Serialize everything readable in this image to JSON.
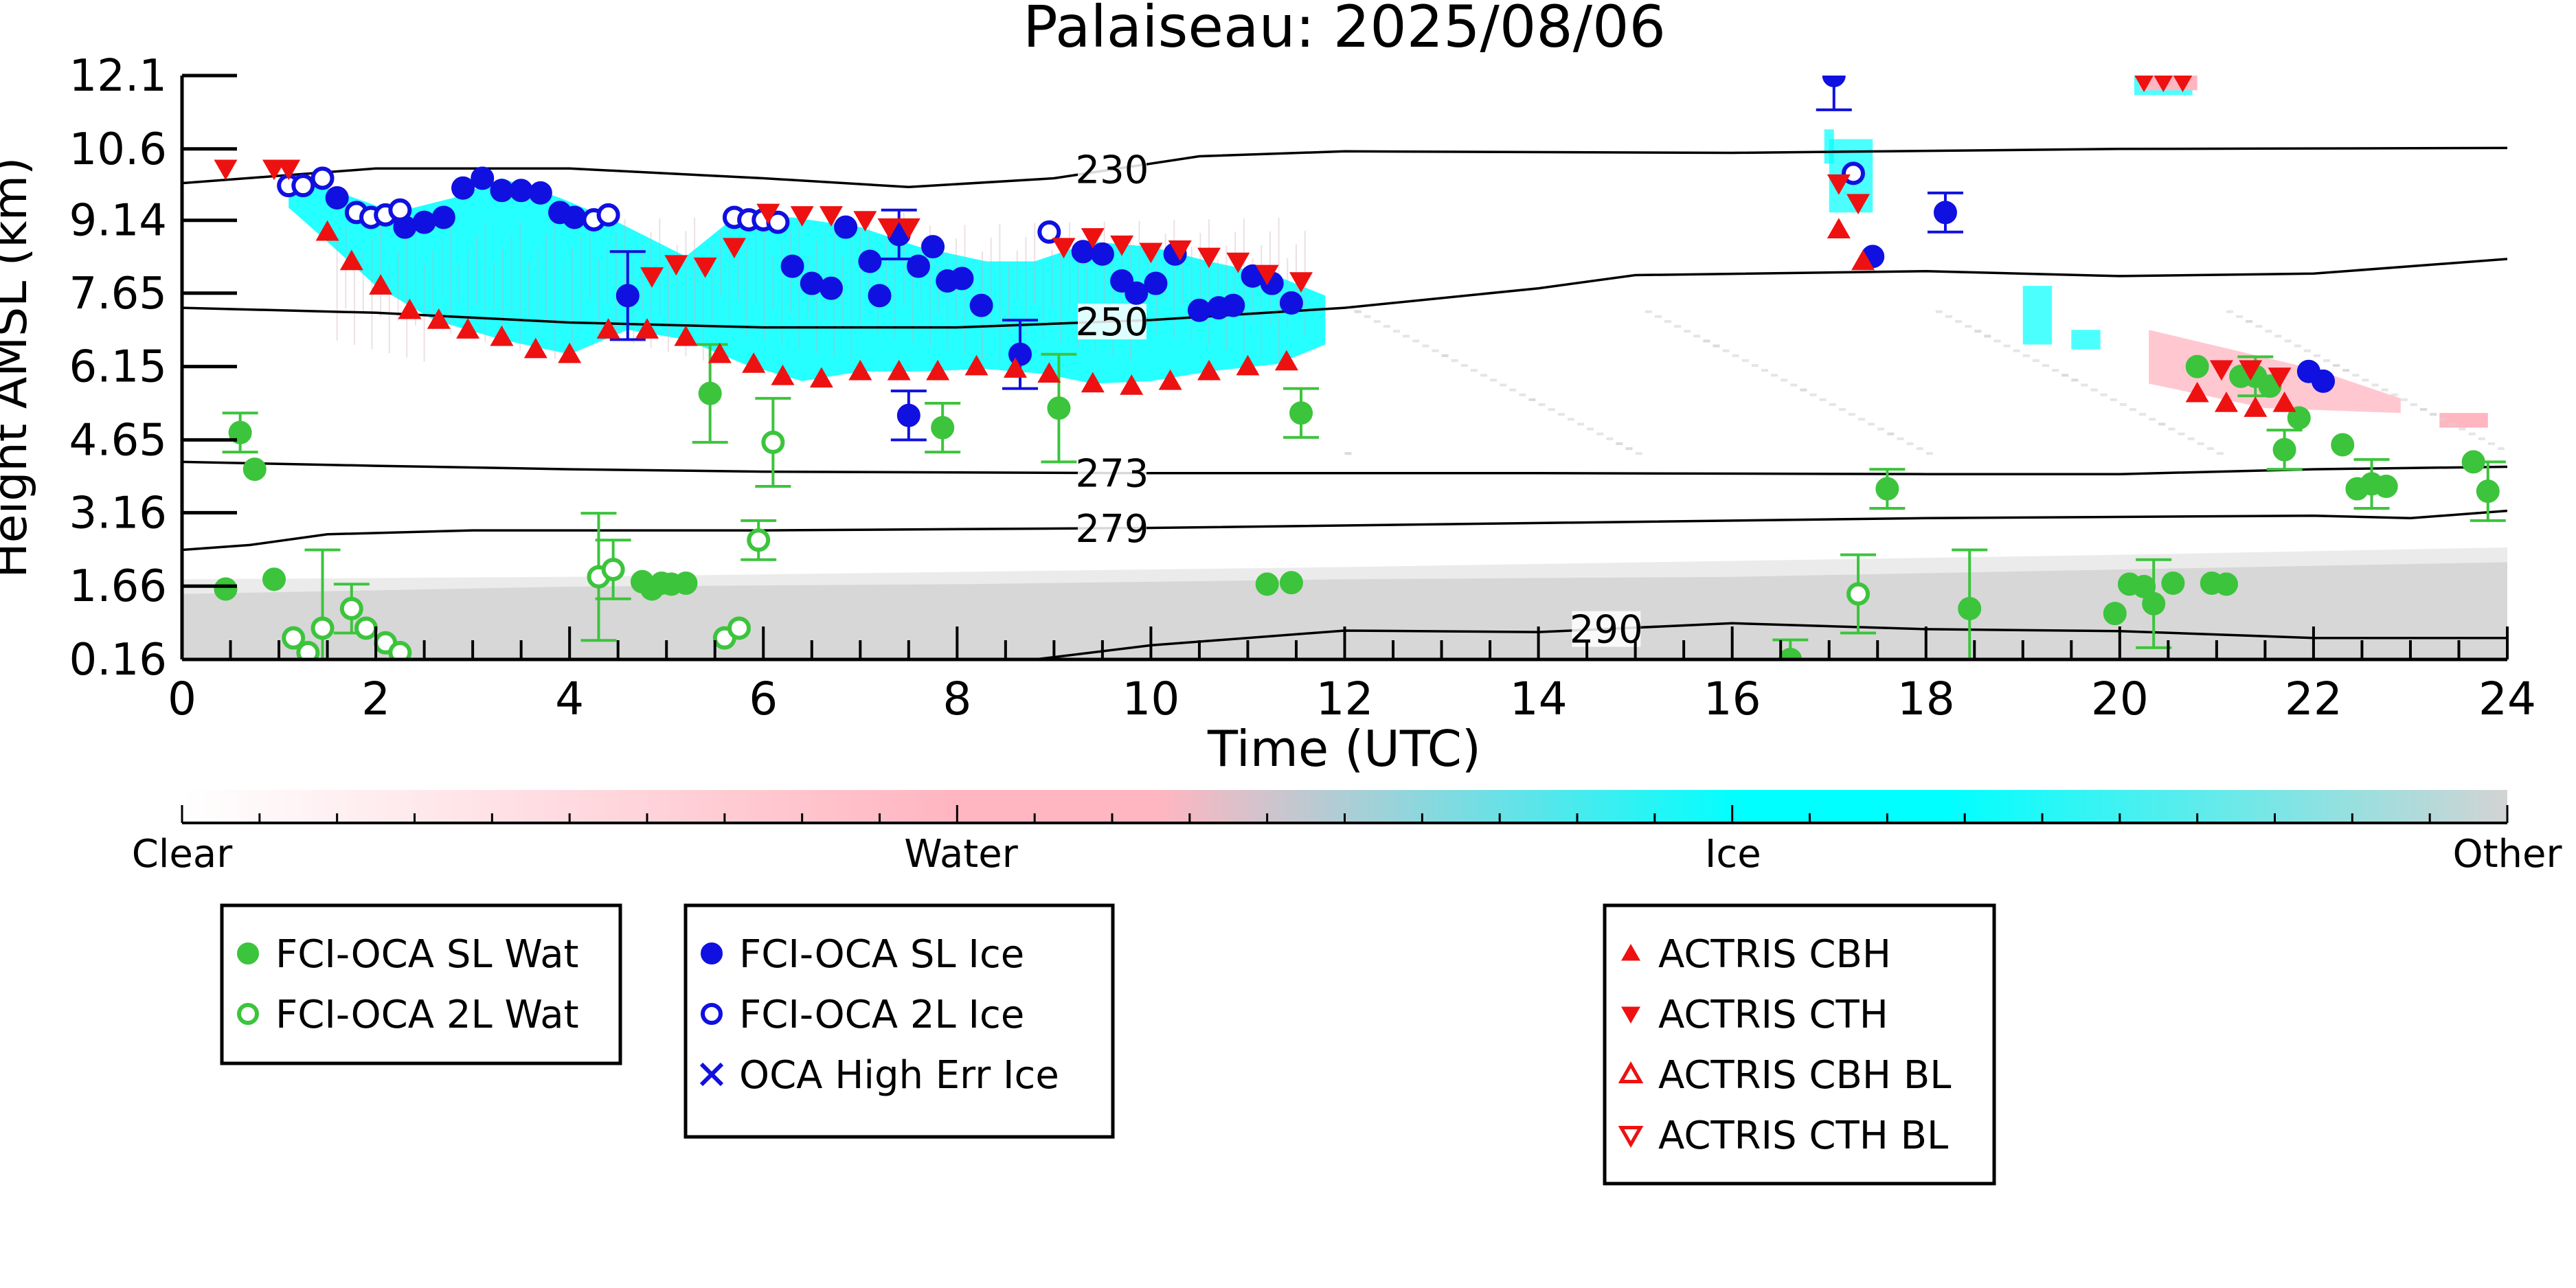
{
  "chart_data": {
    "type": "scatter",
    "title": "Palaiseau: 2025/08/06",
    "xlabel": "Time (UTC)",
    "ylabel": "Height AMSL (km)",
    "xlim": [
      0,
      24
    ],
    "ylim": [
      0.16,
      12.1
    ],
    "x_ticks": [
      0,
      2,
      4,
      6,
      8,
      10,
      12,
      14,
      16,
      18,
      20,
      22,
      24
    ],
    "y_ticks": [
      0.16,
      1.66,
      3.16,
      4.65,
      6.15,
      7.65,
      9.14,
      10.6,
      12.1
    ],
    "y_tick_labels": [
      "0.16",
      "1.66",
      "3.16",
      "4.65",
      "6.15",
      "7.65",
      "9.14",
      "10.6",
      "12.1"
    ],
    "grid": false,
    "colorbar": {
      "labels": [
        "Clear",
        "Water",
        "Ice",
        "Other"
      ],
      "colors": [
        "#ffffff",
        "#ffb6c1",
        "#00ffff",
        "#d3d3d3"
      ]
    },
    "colors": {
      "sl_water": "#3cc43c",
      "sl_ice": "#1010e0",
      "actris": "#ee1111",
      "cloud_ice": "#00ffff",
      "cloud_water": "#ffb6c1",
      "cloud_other": "#d3d3d3"
    },
    "isotherms": [
      {
        "label": "230",
        "label_x": 9.6,
        "points": [
          [
            0,
            9.9
          ],
          [
            2,
            10.2
          ],
          [
            4,
            10.2
          ],
          [
            6,
            10.0
          ],
          [
            7.5,
            9.82
          ],
          [
            9,
            10.0
          ],
          [
            10.5,
            10.45
          ],
          [
            12,
            10.55
          ],
          [
            16,
            10.52
          ],
          [
            20,
            10.6
          ],
          [
            24,
            10.62
          ]
        ]
      },
      {
        "label": "250",
        "label_x": 9.6,
        "points": [
          [
            0,
            7.35
          ],
          [
            2,
            7.25
          ],
          [
            4,
            7.05
          ],
          [
            6,
            6.95
          ],
          [
            8,
            6.95
          ],
          [
            10,
            7.1
          ],
          [
            12,
            7.35
          ],
          [
            14,
            7.75
          ],
          [
            15,
            8.02
          ],
          [
            18,
            8.1
          ],
          [
            20,
            8.0
          ],
          [
            22,
            8.05
          ],
          [
            24,
            8.35
          ]
        ]
      },
      {
        "label": "273",
        "label_x": 9.6,
        "points": [
          [
            0,
            4.2
          ],
          [
            2,
            4.12
          ],
          [
            4,
            4.05
          ],
          [
            6,
            4.0
          ],
          [
            10,
            3.97
          ],
          [
            14,
            3.97
          ],
          [
            18,
            3.95
          ],
          [
            20,
            3.95
          ],
          [
            22,
            4.05
          ],
          [
            24,
            4.1
          ]
        ]
      },
      {
        "label": "279",
        "label_x": 9.6,
        "points": [
          [
            0,
            2.4
          ],
          [
            0.7,
            2.5
          ],
          [
            1.5,
            2.72
          ],
          [
            3,
            2.8
          ],
          [
            6,
            2.8
          ],
          [
            10,
            2.85
          ],
          [
            14,
            2.95
          ],
          [
            18,
            3.05
          ],
          [
            22,
            3.1
          ],
          [
            23,
            3.05
          ],
          [
            24,
            3.2
          ]
        ]
      },
      {
        "label": "290",
        "label_x": 14.7,
        "points": [
          [
            8.8,
            0.16
          ],
          [
            10,
            0.45
          ],
          [
            12,
            0.75
          ],
          [
            14,
            0.72
          ],
          [
            16,
            0.9
          ],
          [
            18,
            0.78
          ],
          [
            20,
            0.74
          ],
          [
            22,
            0.6
          ],
          [
            24,
            0.6
          ]
        ]
      }
    ],
    "series": [
      {
        "name": "FCI-OCA SL Wat",
        "marker": "filled-circle",
        "color": "#3cc43c",
        "points": [
          {
            "x": 0.45,
            "y": 1.6
          },
          {
            "x": 0.6,
            "y": 4.8,
            "err": 0.4
          },
          {
            "x": 0.75,
            "y": 4.05
          },
          {
            "x": 0.95,
            "y": 1.8
          },
          {
            "x": 4.75,
            "y": 1.75
          },
          {
            "x": 4.85,
            "y": 1.6
          },
          {
            "x": 4.95,
            "y": 1.72
          },
          {
            "x": 5.05,
            "y": 1.7
          },
          {
            "x": 5.2,
            "y": 1.72
          },
          {
            "x": 5.45,
            "y": 5.6,
            "err": 1.0
          },
          {
            "x": 7.85,
            "y": 4.9,
            "err": 0.5
          },
          {
            "x": 9.05,
            "y": 5.3,
            "err": 1.1
          },
          {
            "x": 11.2,
            "y": 1.7
          },
          {
            "x": 11.45,
            "y": 1.73
          },
          {
            "x": 11.55,
            "y": 5.2,
            "err": 0.5
          },
          {
            "x": 16.6,
            "y": 0.16,
            "err": 0.4
          },
          {
            "x": 17.6,
            "y": 3.65,
            "err": 0.4
          },
          {
            "x": 18.45,
            "y": 1.2,
            "err": 1.2
          },
          {
            "x": 19.95,
            "y": 1.1
          },
          {
            "x": 20.1,
            "y": 1.7
          },
          {
            "x": 20.25,
            "y": 1.65
          },
          {
            "x": 20.35,
            "y": 1.3,
            "err": 0.9
          },
          {
            "x": 20.55,
            "y": 1.72
          },
          {
            "x": 20.8,
            "y": 6.15
          },
          {
            "x": 20.95,
            "y": 1.72
          },
          {
            "x": 21.1,
            "y": 1.7
          },
          {
            "x": 21.25,
            "y": 5.95
          },
          {
            "x": 21.4,
            "y": 5.95,
            "err": 0.4
          },
          {
            "x": 21.55,
            "y": 5.75
          },
          {
            "x": 21.7,
            "y": 4.45,
            "err": 0.4
          },
          {
            "x": 21.85,
            "y": 5.1
          },
          {
            "x": 22.3,
            "y": 4.55
          },
          {
            "x": 22.45,
            "y": 3.65
          },
          {
            "x": 22.6,
            "y": 3.75,
            "err": 0.5
          },
          {
            "x": 22.75,
            "y": 3.7
          },
          {
            "x": 23.65,
            "y": 4.2
          },
          {
            "x": 23.8,
            "y": 3.6,
            "err": 0.6
          }
        ]
      },
      {
        "name": "FCI-OCA 2L Wat",
        "marker": "open-circle",
        "color": "#3cc43c",
        "points": [
          {
            "x": 1.15,
            "y": 0.6
          },
          {
            "x": 1.3,
            "y": 0.3
          },
          {
            "x": 1.45,
            "y": 0.8,
            "err": 1.6
          },
          {
            "x": 1.75,
            "y": 1.2,
            "err": 0.5
          },
          {
            "x": 1.9,
            "y": 0.8
          },
          {
            "x": 2.1,
            "y": 0.5
          },
          {
            "x": 2.25,
            "y": 0.3
          },
          {
            "x": 4.3,
            "y": 1.85,
            "err": 1.3
          },
          {
            "x": 4.45,
            "y": 2.0,
            "err": 0.6
          },
          {
            "x": 5.6,
            "y": 0.6
          },
          {
            "x": 5.75,
            "y": 0.8
          },
          {
            "x": 5.95,
            "y": 2.6,
            "err": 0.4
          },
          {
            "x": 6.1,
            "y": 4.6,
            "err": 0.9
          },
          {
            "x": 17.3,
            "y": 1.5,
            "err": 0.8
          }
        ]
      },
      {
        "name": "FCI-OCA SL Ice",
        "marker": "filled-circle",
        "color": "#1010e0",
        "points": [
          {
            "x": 1.6,
            "y": 9.6
          },
          {
            "x": 2.3,
            "y": 9.0
          },
          {
            "x": 2.5,
            "y": 9.1
          },
          {
            "x": 2.7,
            "y": 9.2
          },
          {
            "x": 2.9,
            "y": 9.8
          },
          {
            "x": 3.1,
            "y": 10.0
          },
          {
            "x": 3.3,
            "y": 9.75
          },
          {
            "x": 3.5,
            "y": 9.75
          },
          {
            "x": 3.7,
            "y": 9.7
          },
          {
            "x": 3.9,
            "y": 9.3
          },
          {
            "x": 4.05,
            "y": 9.2
          },
          {
            "x": 4.6,
            "y": 7.6,
            "err": 0.9
          },
          {
            "x": 6.3,
            "y": 8.2
          },
          {
            "x": 6.5,
            "y": 7.85
          },
          {
            "x": 6.7,
            "y": 7.75
          },
          {
            "x": 6.85,
            "y": 9.0
          },
          {
            "x": 7.1,
            "y": 8.3
          },
          {
            "x": 7.2,
            "y": 7.6
          },
          {
            "x": 7.4,
            "y": 8.85,
            "err": 0.5
          },
          {
            "x": 7.6,
            "y": 8.2
          },
          {
            "x": 7.75,
            "y": 8.6
          },
          {
            "x": 7.9,
            "y": 7.9
          },
          {
            "x": 8.05,
            "y": 7.95
          },
          {
            "x": 8.25,
            "y": 7.4
          },
          {
            "x": 8.65,
            "y": 6.4,
            "err": 0.7
          },
          {
            "x": 7.5,
            "y": 5.15,
            "err": 0.5
          },
          {
            "x": 9.3,
            "y": 8.5
          },
          {
            "x": 9.5,
            "y": 8.45
          },
          {
            "x": 9.7,
            "y": 7.9
          },
          {
            "x": 9.85,
            "y": 7.65
          },
          {
            "x": 10.05,
            "y": 7.85
          },
          {
            "x": 10.25,
            "y": 8.45
          },
          {
            "x": 10.5,
            "y": 7.3
          },
          {
            "x": 10.7,
            "y": 7.35
          },
          {
            "x": 10.85,
            "y": 7.4
          },
          {
            "x": 11.05,
            "y": 8.0
          },
          {
            "x": 11.25,
            "y": 7.85
          },
          {
            "x": 11.45,
            "y": 7.45
          },
          {
            "x": 17.05,
            "y": 12.1,
            "err": 0.7
          },
          {
            "x": 17.45,
            "y": 8.4
          },
          {
            "x": 18.2,
            "y": 9.3,
            "err": 0.4
          },
          {
            "x": 21.95,
            "y": 6.05
          },
          {
            "x": 22.1,
            "y": 5.85
          }
        ]
      },
      {
        "name": "FCI-OCA 2L Ice",
        "marker": "open-circle",
        "color": "#1010e0",
        "points": [
          {
            "x": 1.1,
            "y": 9.85
          },
          {
            "x": 1.25,
            "y": 9.85
          },
          {
            "x": 1.45,
            "y": 10.0
          },
          {
            "x": 1.8,
            "y": 9.3
          },
          {
            "x": 1.95,
            "y": 9.2
          },
          {
            "x": 2.1,
            "y": 9.25
          },
          {
            "x": 2.25,
            "y": 9.35
          },
          {
            "x": 4.25,
            "y": 9.15
          },
          {
            "x": 4.4,
            "y": 9.25
          },
          {
            "x": 5.7,
            "y": 9.2
          },
          {
            "x": 5.85,
            "y": 9.15
          },
          {
            "x": 6.0,
            "y": 9.15
          },
          {
            "x": 6.15,
            "y": 9.1
          },
          {
            "x": 8.95,
            "y": 8.9
          },
          {
            "x": 17.25,
            "y": 10.1
          }
        ]
      },
      {
        "name": "OCA High Err Ice",
        "marker": "x",
        "color": "#1010e0",
        "points": []
      },
      {
        "name": "ACTRIS CBH",
        "marker": "filled-triangle-up",
        "color": "#ee1111",
        "points": [
          {
            "x": 1.5,
            "y": 8.9
          },
          {
            "x": 1.75,
            "y": 8.3
          },
          {
            "x": 2.05,
            "y": 7.8
          },
          {
            "x": 2.35,
            "y": 7.3
          },
          {
            "x": 2.65,
            "y": 7.1
          },
          {
            "x": 2.95,
            "y": 6.9
          },
          {
            "x": 3.3,
            "y": 6.75
          },
          {
            "x": 3.65,
            "y": 6.5
          },
          {
            "x": 4.0,
            "y": 6.4
          },
          {
            "x": 4.4,
            "y": 6.9
          },
          {
            "x": 4.8,
            "y": 6.9
          },
          {
            "x": 5.2,
            "y": 6.75
          },
          {
            "x": 5.55,
            "y": 6.4
          },
          {
            "x": 5.9,
            "y": 6.2
          },
          {
            "x": 6.2,
            "y": 5.95
          },
          {
            "x": 6.6,
            "y": 5.9
          },
          {
            "x": 7.0,
            "y": 6.05
          },
          {
            "x": 7.4,
            "y": 6.05
          },
          {
            "x": 7.8,
            "y": 6.05
          },
          {
            "x": 8.2,
            "y": 6.15
          },
          {
            "x": 8.6,
            "y": 6.1
          },
          {
            "x": 8.95,
            "y": 6.0
          },
          {
            "x": 9.4,
            "y": 5.8
          },
          {
            "x": 9.8,
            "y": 5.75
          },
          {
            "x": 10.2,
            "y": 5.85
          },
          {
            "x": 10.6,
            "y": 6.05
          },
          {
            "x": 11.0,
            "y": 6.15
          },
          {
            "x": 11.4,
            "y": 6.25
          },
          {
            "x": 17.1,
            "y": 8.95
          },
          {
            "x": 17.35,
            "y": 8.3
          },
          {
            "x": 20.8,
            "y": 5.6
          },
          {
            "x": 21.1,
            "y": 5.4
          },
          {
            "x": 21.4,
            "y": 5.3
          },
          {
            "x": 21.7,
            "y": 5.4
          }
        ]
      },
      {
        "name": "ACTRIS CTH",
        "marker": "filled-triangle-down",
        "color": "#ee1111",
        "points": [
          {
            "x": 0.45,
            "y": 10.2
          },
          {
            "x": 0.95,
            "y": 10.2
          },
          {
            "x": 1.1,
            "y": 10.2
          },
          {
            "x": 4.85,
            "y": 8.0
          },
          {
            "x": 5.1,
            "y": 8.25
          },
          {
            "x": 5.4,
            "y": 8.2
          },
          {
            "x": 5.7,
            "y": 8.6
          },
          {
            "x": 6.05,
            "y": 9.3
          },
          {
            "x": 6.4,
            "y": 9.25
          },
          {
            "x": 6.7,
            "y": 9.25
          },
          {
            "x": 7.05,
            "y": 9.15
          },
          {
            "x": 7.3,
            "y": 9.0
          },
          {
            "x": 7.5,
            "y": 9.0
          },
          {
            "x": 9.1,
            "y": 8.6
          },
          {
            "x": 9.4,
            "y": 8.8
          },
          {
            "x": 9.7,
            "y": 8.65
          },
          {
            "x": 10.0,
            "y": 8.5
          },
          {
            "x": 10.3,
            "y": 8.55
          },
          {
            "x": 10.6,
            "y": 8.4
          },
          {
            "x": 10.9,
            "y": 8.3
          },
          {
            "x": 11.2,
            "y": 8.05
          },
          {
            "x": 11.55,
            "y": 7.9
          },
          {
            "x": 17.1,
            "y": 9.9
          },
          {
            "x": 17.3,
            "y": 9.5
          },
          {
            "x": 20.25,
            "y": 12.0
          },
          {
            "x": 20.45,
            "y": 12.0
          },
          {
            "x": 20.65,
            "y": 12.0
          },
          {
            "x": 21.05,
            "y": 6.1
          },
          {
            "x": 21.35,
            "y": 6.1
          },
          {
            "x": 21.65,
            "y": 5.95
          }
        ]
      },
      {
        "name": "ACTRIS CBH BL",
        "marker": "open-triangle-up",
        "color": "#ee1111",
        "points": []
      },
      {
        "name": "ACTRIS CTH BL",
        "marker": "open-triangle-down",
        "color": "#ee1111",
        "points": []
      }
    ],
    "legends": [
      {
        "items": [
          "FCI-OCA SL Wat",
          "FCI-OCA 2L Wat"
        ]
      },
      {
        "items": [
          "FCI-OCA SL Ice",
          "FCI-OCA 2L Ice",
          "OCA High Err Ice"
        ]
      },
      {
        "items": [
          "ACTRIS CBH",
          "ACTRIS CTH",
          "ACTRIS CBH BL",
          "ACTRIS CTH BL"
        ]
      }
    ]
  }
}
